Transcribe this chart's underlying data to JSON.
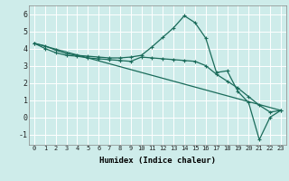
{
  "title": "",
  "xlabel": "Humidex (Indice chaleur)",
  "xlim": [
    -0.5,
    23.5
  ],
  "ylim": [
    -1.6,
    6.5
  ],
  "xticks": [
    0,
    1,
    2,
    3,
    4,
    5,
    6,
    7,
    8,
    9,
    10,
    11,
    12,
    13,
    14,
    15,
    16,
    17,
    18,
    19,
    20,
    21,
    22,
    23
  ],
  "yticks": [
    -1,
    0,
    1,
    2,
    3,
    4,
    5,
    6
  ],
  "background_color": "#ceecea",
  "grid_color": "#ffffff",
  "line_color": "#1a6b5a",
  "line1_x": [
    0,
    1,
    2,
    3,
    4,
    5,
    6,
    7,
    8,
    9,
    10,
    11,
    12,
    13,
    14,
    15,
    16,
    17,
    18,
    19,
    20,
    21,
    22,
    23
  ],
  "line1_y": [
    4.3,
    4.15,
    3.9,
    3.7,
    3.6,
    3.55,
    3.5,
    3.45,
    3.45,
    3.5,
    3.6,
    4.1,
    4.65,
    5.2,
    5.9,
    5.5,
    4.6,
    2.6,
    2.7,
    1.5,
    0.85,
    -1.3,
    0.0,
    0.4
  ],
  "line2_x": [
    0,
    23
  ],
  "line2_y": [
    4.3,
    0.4
  ],
  "line3_x": [
    0,
    1,
    2,
    3,
    4,
    5,
    6,
    7,
    8,
    9,
    10,
    11,
    12,
    13,
    14,
    15,
    16,
    17,
    18,
    19,
    20,
    21,
    22,
    23
  ],
  "line3_y": [
    4.3,
    4.0,
    3.75,
    3.6,
    3.55,
    3.45,
    3.4,
    3.35,
    3.3,
    3.25,
    3.5,
    3.45,
    3.4,
    3.35,
    3.3,
    3.25,
    3.0,
    2.5,
    2.1,
    1.7,
    1.2,
    0.7,
    0.3,
    0.4
  ],
  "xlabel_fontsize": 6.5,
  "tick_fontsize_x": 5.0,
  "tick_fontsize_y": 6.0
}
